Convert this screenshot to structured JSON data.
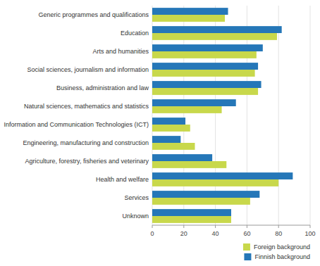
{
  "chart_data": {
    "type": "bar",
    "orientation": "horizontal",
    "categories": [
      "Generic programmes and qualifications",
      "Education",
      "Arts and humanities",
      "Social sciences, journalism and information",
      "Business, administration and law",
      "Natural sciences, mathematics and statistics",
      "Information and Communication Technologies (ICT)",
      "Engineering, manufacturing and construction",
      "Agriculture, forestry, fisheries and veterinary",
      "Health and welfare",
      "Services",
      "Unknown"
    ],
    "series": [
      {
        "name": "Finnish background",
        "color": "#2577B8",
        "values": [
          48,
          82,
          70,
          67,
          69,
          53,
          21,
          18,
          38,
          89,
          68,
          50
        ]
      },
      {
        "name": "Foreign background",
        "color": "#C8D84B",
        "values": [
          46,
          79,
          66,
          65,
          67,
          44,
          24,
          27,
          47,
          80,
          62,
          50
        ]
      }
    ],
    "xlim": [
      0,
      100
    ],
    "xticks": [
      0,
      20,
      40,
      60,
      80,
      100
    ],
    "grid": true,
    "legend": "lower right"
  }
}
